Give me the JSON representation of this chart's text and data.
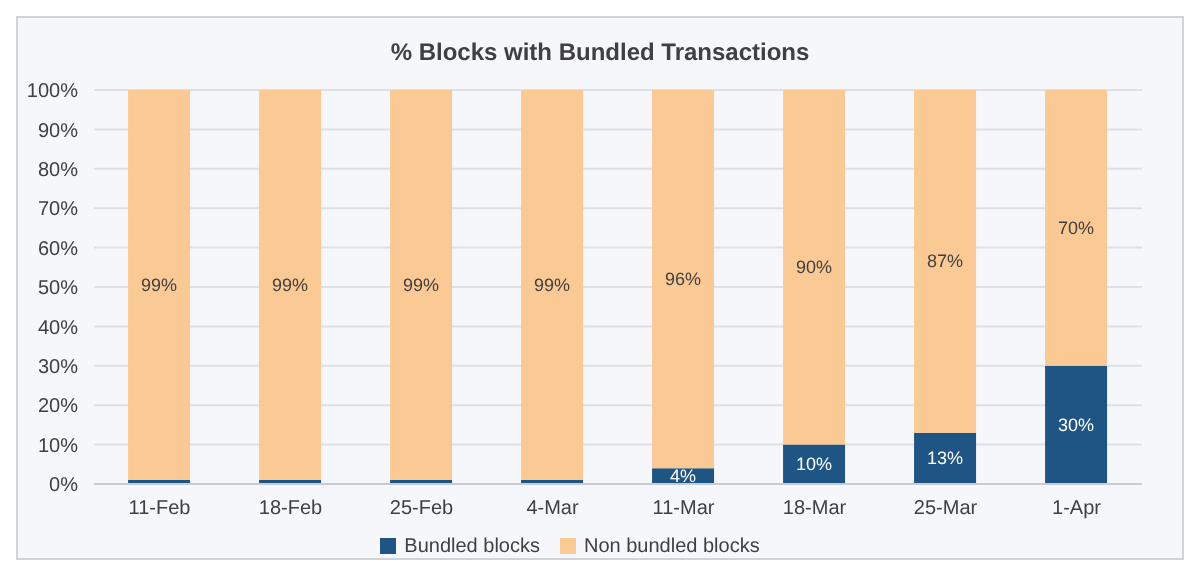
{
  "chart_data": {
    "type": "bar",
    "title": "% Blocks with Bundled Transactions",
    "stacked": true,
    "categories": [
      "11-Feb",
      "18-Feb",
      "25-Feb",
      "4-Mar",
      "11-Mar",
      "18-Mar",
      "25-Mar",
      "1-Apr"
    ],
    "series": [
      {
        "name": "Bundled blocks",
        "color": "#1f5584",
        "values": [
          1,
          1,
          1,
          1,
          4,
          10,
          13,
          30
        ],
        "value_labels": [
          null,
          null,
          null,
          null,
          "4%",
          "10%",
          "13%",
          "30%"
        ]
      },
      {
        "name": "Non bundled blocks",
        "color": "#fbc994",
        "values": [
          99,
          99,
          99,
          99,
          96,
          90,
          87,
          70
        ],
        "value_labels": [
          "99%",
          "99%",
          "99%",
          "99%",
          "96%",
          "90%",
          "87%",
          "70%"
        ]
      }
    ],
    "ylim": [
      0,
      100
    ],
    "yticks": [
      {
        "value": 0,
        "label": "0%"
      },
      {
        "value": 10,
        "label": "10%"
      },
      {
        "value": 20,
        "label": "20%"
      },
      {
        "value": 30,
        "label": "30%"
      },
      {
        "value": 40,
        "label": "40%"
      },
      {
        "value": 50,
        "label": "50%"
      },
      {
        "value": 60,
        "label": "60%"
      },
      {
        "value": 70,
        "label": "70%"
      },
      {
        "value": 80,
        "label": "80%"
      },
      {
        "value": 90,
        "label": "90%"
      },
      {
        "value": 100,
        "label": "100%"
      }
    ],
    "grid": "y",
    "legend": "bottom"
  }
}
